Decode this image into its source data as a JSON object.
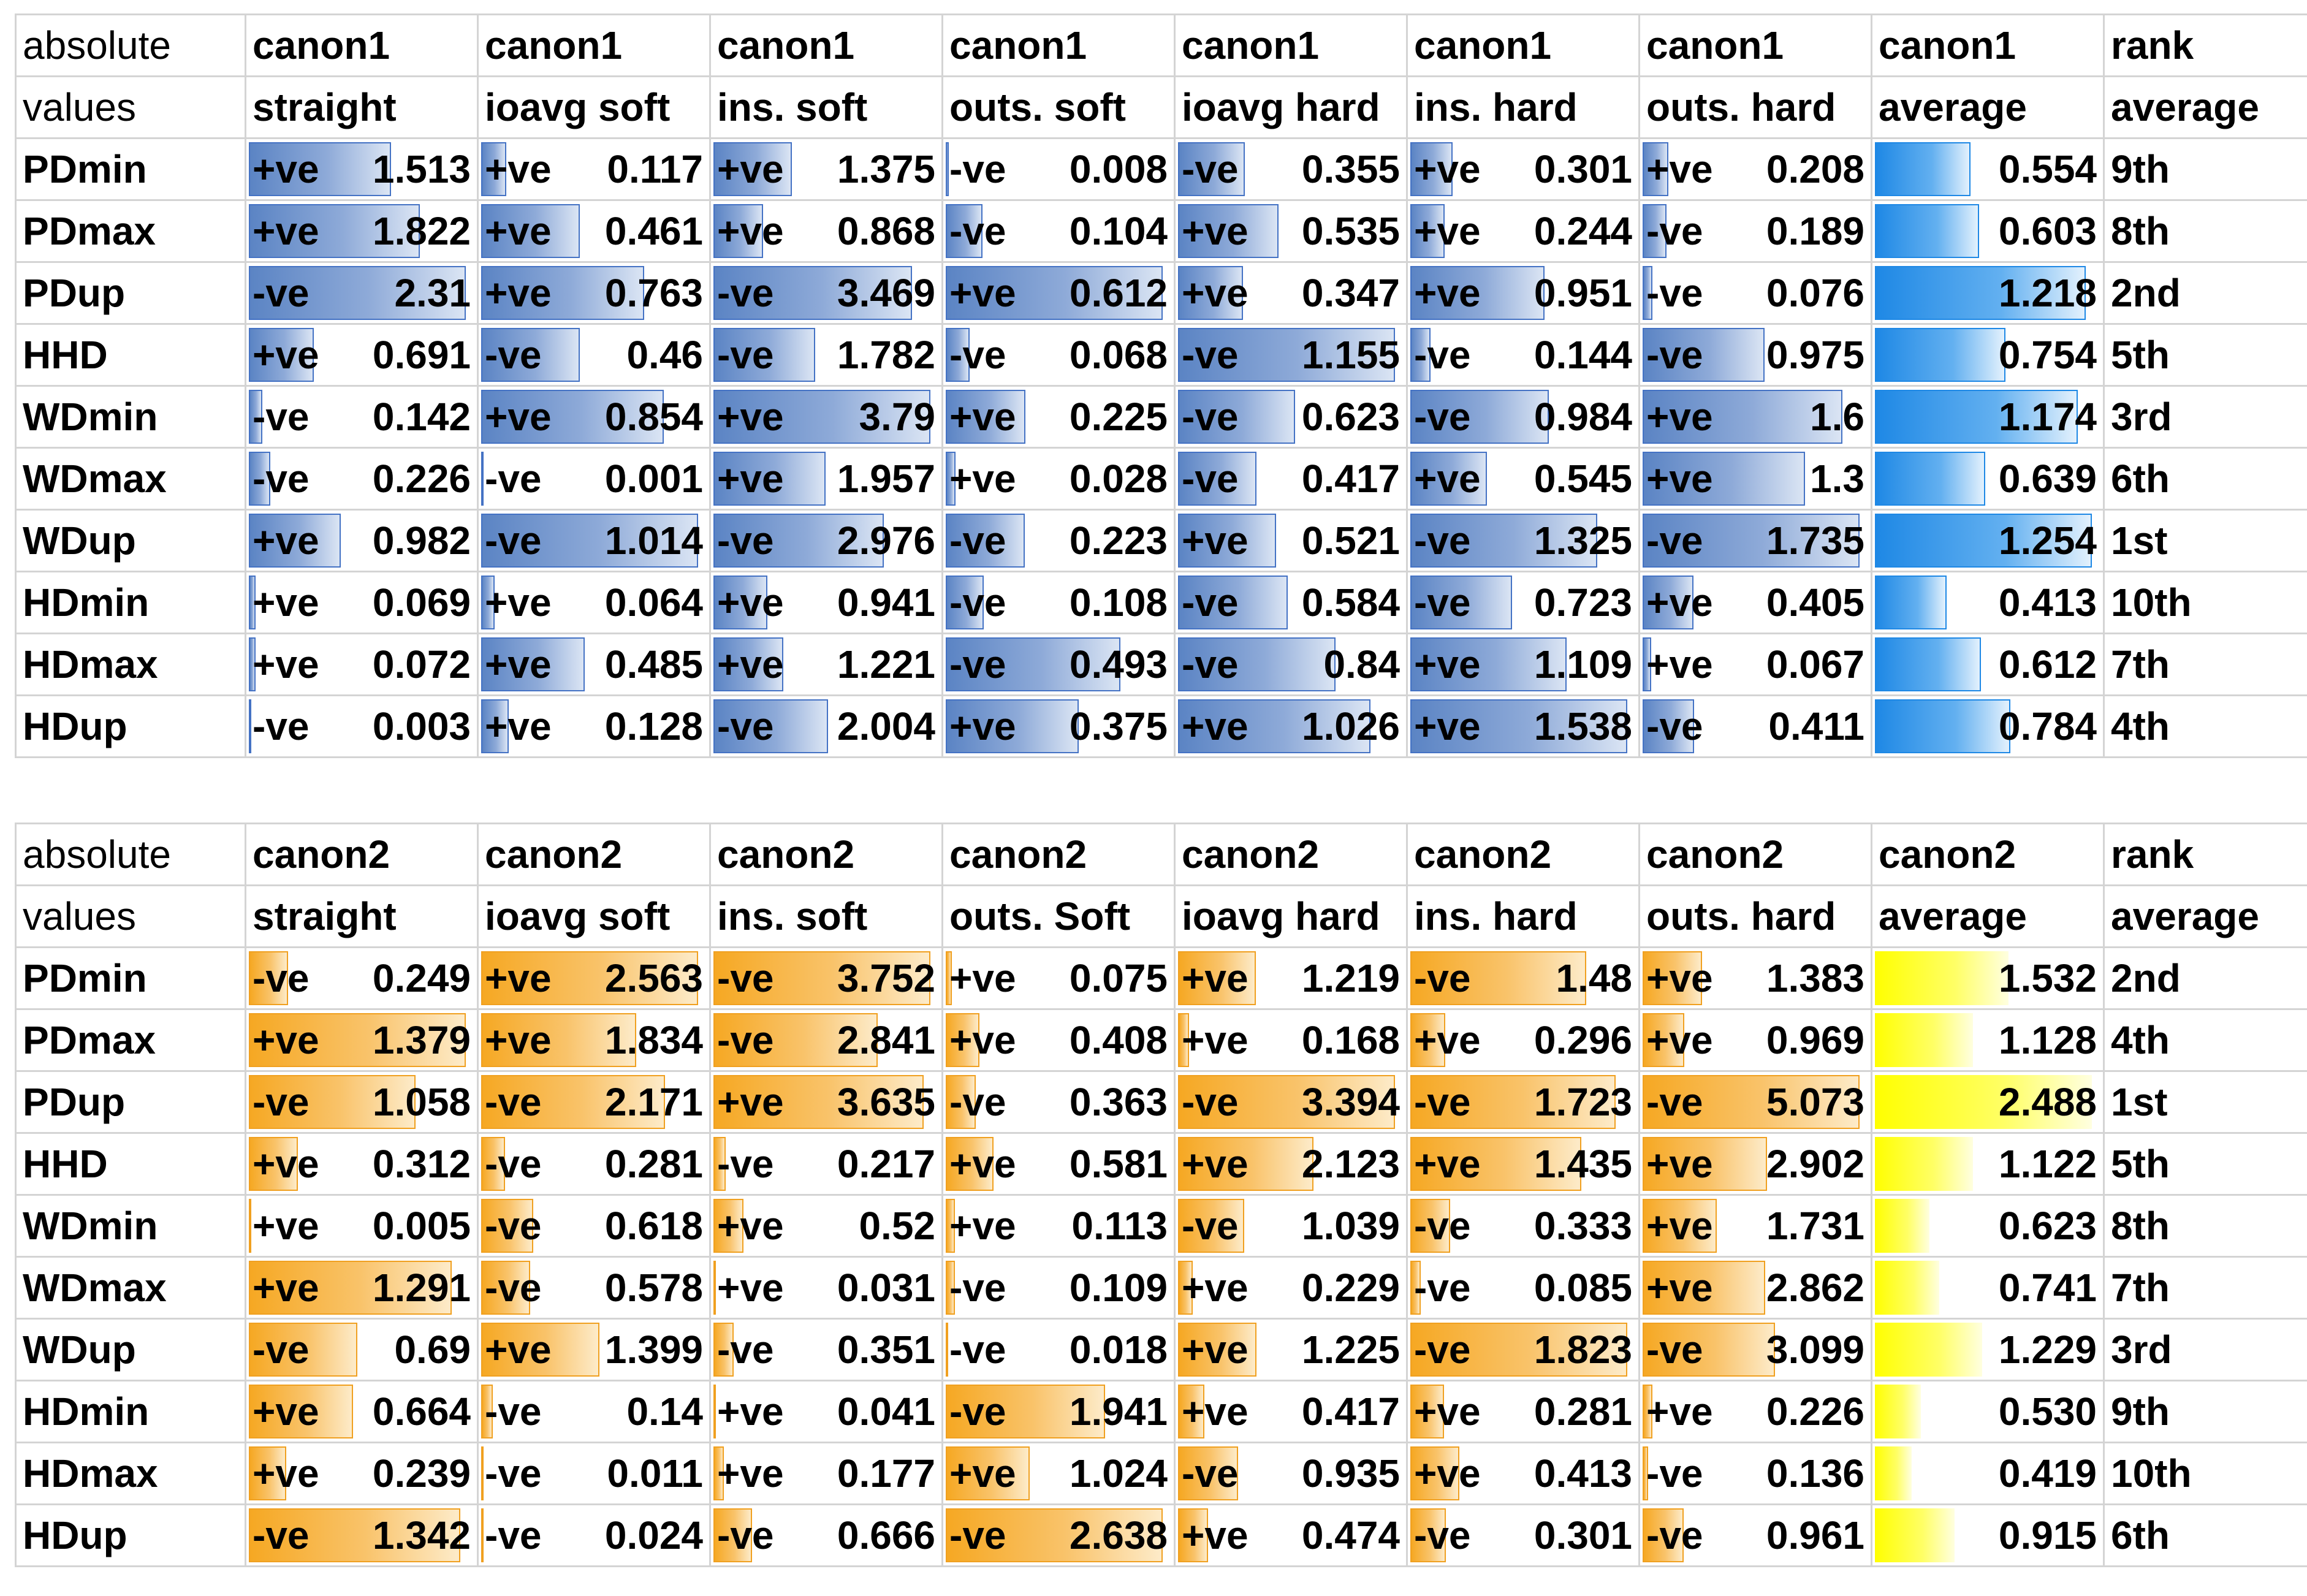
{
  "colors": {
    "canon1_accent": "#4472c4",
    "canon1_average_bar": "#1e88e5",
    "canon2_accent": "#ffc000",
    "canon2_bar": "#f6a823",
    "canon2_average_bar": "#ffff00"
  },
  "tables": [
    {
      "id": "canon1",
      "header1": [
        "absolute",
        "canon1",
        "canon1",
        "canon1",
        "canon1",
        "canon1",
        "canon1",
        "canon1",
        "canon1",
        "rank"
      ],
      "header2": [
        "values",
        "straight",
        "ioavg soft",
        "ins. soft",
        "outs. soft",
        "ioavg hard",
        "ins. hard",
        "outs. hard",
        "average",
        "average"
      ],
      "rows": [
        {
          "name": "PDmin",
          "cells": [
            [
              "+ve",
              "1.513"
            ],
            [
              "+ve",
              "0.117"
            ],
            [
              "+ve",
              "1.375"
            ],
            [
              "-ve",
              "0.008"
            ],
            [
              "-ve",
              "0.355"
            ],
            [
              "+ve",
              "0.301"
            ],
            [
              "+ve",
              "0.208"
            ]
          ],
          "average": "0.554",
          "rank": "9th"
        },
        {
          "name": "PDmax",
          "cells": [
            [
              "+ve",
              "1.822"
            ],
            [
              "+ve",
              "0.461"
            ],
            [
              "+ve",
              "0.868"
            ],
            [
              "-ve",
              "0.104"
            ],
            [
              "+ve",
              "0.535"
            ],
            [
              "+ve",
              "0.244"
            ],
            [
              "-ve",
              "0.189"
            ]
          ],
          "average": "0.603",
          "rank": "8th"
        },
        {
          "name": "PDup",
          "cells": [
            [
              "-ve",
              "2.31"
            ],
            [
              "+ve",
              "0.763"
            ],
            [
              "-ve",
              "3.469"
            ],
            [
              "+ve",
              "0.612"
            ],
            [
              "+ve",
              "0.347"
            ],
            [
              "+ve",
              "0.951"
            ],
            [
              "-ve",
              "0.076"
            ]
          ],
          "average": "1.218",
          "rank": "2nd"
        },
        {
          "name": "HHD",
          "cells": [
            [
              "+ve",
              "0.691"
            ],
            [
              "-ve",
              "0.46"
            ],
            [
              "-ve",
              "1.782"
            ],
            [
              "-ve",
              "0.068"
            ],
            [
              "-ve",
              "1.155"
            ],
            [
              "-ve",
              "0.144"
            ],
            [
              "-ve",
              "0.975"
            ]
          ],
          "average": "0.754",
          "rank": "5th"
        },
        {
          "name": "WDmin",
          "cells": [
            [
              "-ve",
              "0.142"
            ],
            [
              "+ve",
              "0.854"
            ],
            [
              "+ve",
              "3.79"
            ],
            [
              "+ve",
              "0.225"
            ],
            [
              "-ve",
              "0.623"
            ],
            [
              "-ve",
              "0.984"
            ],
            [
              "+ve",
              "1.6"
            ]
          ],
          "average": "1.174",
          "rank": "3rd"
        },
        {
          "name": "WDmax",
          "cells": [
            [
              "-ve",
              "0.226"
            ],
            [
              "-ve",
              "0.001"
            ],
            [
              "+ve",
              "1.957"
            ],
            [
              "+ve",
              "0.028"
            ],
            [
              "-ve",
              "0.417"
            ],
            [
              "+ve",
              "0.545"
            ],
            [
              "+ve",
              "1.3"
            ]
          ],
          "average": "0.639",
          "rank": "6th"
        },
        {
          "name": "WDup",
          "cells": [
            [
              "+ve",
              "0.982"
            ],
            [
              "-ve",
              "1.014"
            ],
            [
              "-ve",
              "2.976"
            ],
            [
              "-ve",
              "0.223"
            ],
            [
              "+ve",
              "0.521"
            ],
            [
              "-ve",
              "1.325"
            ],
            [
              "-ve",
              "1.735"
            ]
          ],
          "average": "1.254",
          "rank": "1st"
        },
        {
          "name": "HDmin",
          "cells": [
            [
              "+ve",
              "0.069"
            ],
            [
              "+ve",
              "0.064"
            ],
            [
              "+ve",
              "0.941"
            ],
            [
              "-ve",
              "0.108"
            ],
            [
              "-ve",
              "0.584"
            ],
            [
              "-ve",
              "0.723"
            ],
            [
              "+ve",
              "0.405"
            ]
          ],
          "average": "0.413",
          "rank": "10th"
        },
        {
          "name": "HDmax",
          "cells": [
            [
              "+ve",
              "0.072"
            ],
            [
              "+ve",
              "0.485"
            ],
            [
              "+ve",
              "1.221"
            ],
            [
              "-ve",
              "0.493"
            ],
            [
              "-ve",
              "0.84"
            ],
            [
              "+ve",
              "1.109"
            ],
            [
              "+ve",
              "0.067"
            ]
          ],
          "average": "0.612",
          "rank": "7th"
        },
        {
          "name": "HDup",
          "cells": [
            [
              "-ve",
              "0.003"
            ],
            [
              "+ve",
              "0.128"
            ],
            [
              "-ve",
              "2.004"
            ],
            [
              "+ve",
              "0.375"
            ],
            [
              "+ve",
              "1.026"
            ],
            [
              "+ve",
              "1.538"
            ],
            [
              "-ve",
              "0.411"
            ]
          ],
          "average": "0.784",
          "rank": "4th"
        }
      ]
    },
    {
      "id": "canon2",
      "header1": [
        "absolute",
        "canon2",
        "canon2",
        "canon2",
        "canon2",
        "canon2",
        "canon2",
        "canon2",
        "canon2",
        "rank"
      ],
      "header2": [
        "values",
        "straight",
        "ioavg soft",
        "ins. soft",
        "outs. Soft",
        "ioavg hard",
        "ins. hard",
        "outs. hard",
        "average",
        "average"
      ],
      "rows": [
        {
          "name": "PDmin",
          "cells": [
            [
              "-ve",
              "0.249"
            ],
            [
              "+ve",
              "2.563"
            ],
            [
              "-ve",
              "3.752"
            ],
            [
              "+ve",
              "0.075"
            ],
            [
              "+ve",
              "1.219"
            ],
            [
              "-ve",
              "1.48"
            ],
            [
              "+ve",
              "1.383"
            ]
          ],
          "average": "1.532",
          "rank": "2nd"
        },
        {
          "name": "PDmax",
          "cells": [
            [
              "+ve",
              "1.379"
            ],
            [
              "+ve",
              "1.834"
            ],
            [
              "-ve",
              "2.841"
            ],
            [
              "+ve",
              "0.408"
            ],
            [
              "+ve",
              "0.168"
            ],
            [
              "+ve",
              "0.296"
            ],
            [
              "+ve",
              "0.969"
            ]
          ],
          "average": "1.128",
          "rank": "4th"
        },
        {
          "name": "PDup",
          "cells": [
            [
              "-ve",
              "1.058"
            ],
            [
              "-ve",
              "2.171"
            ],
            [
              "+ve",
              "3.635"
            ],
            [
              "-ve",
              "0.363"
            ],
            [
              "-ve",
              "3.394"
            ],
            [
              "-ve",
              "1.723"
            ],
            [
              "-ve",
              "5.073"
            ]
          ],
          "average": "2.488",
          "rank": "1st"
        },
        {
          "name": "HHD",
          "cells": [
            [
              "+ve",
              "0.312"
            ],
            [
              "-ve",
              "0.281"
            ],
            [
              "-ve",
              "0.217"
            ],
            [
              "+ve",
              "0.581"
            ],
            [
              "+ve",
              "2.123"
            ],
            [
              "+ve",
              "1.435"
            ],
            [
              "+ve",
              "2.902"
            ]
          ],
          "average": "1.122",
          "rank": "5th"
        },
        {
          "name": "WDmin",
          "cells": [
            [
              "+ve",
              "0.005"
            ],
            [
              "-ve",
              "0.618"
            ],
            [
              "+ve",
              "0.52"
            ],
            [
              "+ve",
              "0.113"
            ],
            [
              "-ve",
              "1.039"
            ],
            [
              "-ve",
              "0.333"
            ],
            [
              "+ve",
              "1.731"
            ]
          ],
          "average": "0.623",
          "rank": "8th"
        },
        {
          "name": "WDmax",
          "cells": [
            [
              "+ve",
              "1.291"
            ],
            [
              "-ve",
              "0.578"
            ],
            [
              "+ve",
              "0.031"
            ],
            [
              "-ve",
              "0.109"
            ],
            [
              "+ve",
              "0.229"
            ],
            [
              "-ve",
              "0.085"
            ],
            [
              "+ve",
              "2.862"
            ]
          ],
          "average": "0.741",
          "rank": "7th"
        },
        {
          "name": "WDup",
          "cells": [
            [
              "-ve",
              "0.69"
            ],
            [
              "+ve",
              "1.399"
            ],
            [
              "-ve",
              "0.351"
            ],
            [
              "-ve",
              "0.018"
            ],
            [
              "+ve",
              "1.225"
            ],
            [
              "-ve",
              "1.823"
            ],
            [
              "-ve",
              "3.099"
            ]
          ],
          "average": "1.229",
          "rank": "3rd"
        },
        {
          "name": "HDmin",
          "cells": [
            [
              "+ve",
              "0.664"
            ],
            [
              "-ve",
              "0.14"
            ],
            [
              "+ve",
              "0.041"
            ],
            [
              "-ve",
              "1.941"
            ],
            [
              "+ve",
              "0.417"
            ],
            [
              "+ve",
              "0.281"
            ],
            [
              "+ve",
              "0.226"
            ]
          ],
          "average": "0.530",
          "rank": "9th"
        },
        {
          "name": "HDmax",
          "cells": [
            [
              "+ve",
              "0.239"
            ],
            [
              "-ve",
              "0.011"
            ],
            [
              "+ve",
              "0.177"
            ],
            [
              "+ve",
              "1.024"
            ],
            [
              "-ve",
              "0.935"
            ],
            [
              "+ve",
              "0.413"
            ],
            [
              "-ve",
              "0.136"
            ]
          ],
          "average": "0.419",
          "rank": "10th"
        },
        {
          "name": "HDup",
          "cells": [
            [
              "-ve",
              "1.342"
            ],
            [
              "-ve",
              "0.024"
            ],
            [
              "-ve",
              "0.666"
            ],
            [
              "-ve",
              "2.638"
            ],
            [
              "+ve",
              "0.474"
            ],
            [
              "-ve",
              "0.301"
            ],
            [
              "-ve",
              "0.961"
            ]
          ],
          "average": "0.915",
          "rank": "6th"
        }
      ]
    }
  ]
}
